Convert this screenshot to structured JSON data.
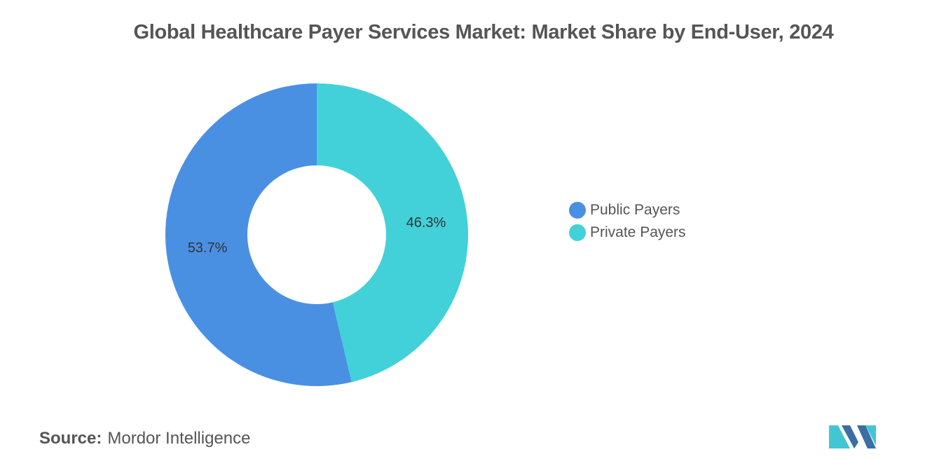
{
  "chart_data": {
    "type": "pie",
    "title": "Global Healthcare Payer Services Market: Market Share by End-User, 2024",
    "categories": [
      "Public Payers",
      "Private Payers"
    ],
    "values": [
      53.7,
      46.3
    ],
    "labels": [
      "53.7%",
      "46.3%"
    ],
    "colors": [
      "#4a90e2",
      "#42d1d9"
    ],
    "donut": true,
    "legend_position": "right"
  },
  "source": {
    "label": "Source:",
    "text": "Mordor Intelligence"
  },
  "logo": {
    "name": "mordor-intelligence-logo",
    "colors": [
      "#3a6ea5",
      "#42c6d3"
    ]
  }
}
